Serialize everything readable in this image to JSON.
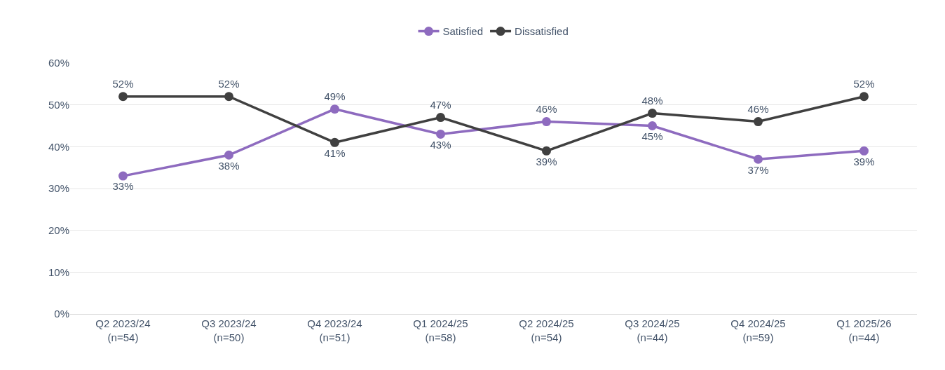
{
  "chart_data": {
    "type": "line",
    "categories": [
      "Q2 2023/24\n(n=54)",
      "Q3 2023/24\n(n=50)",
      "Q4 2023/24\n(n=51)",
      "Q1 2024/25\n(n=58)",
      "Q2 2024/25\n(n=54)",
      "Q3 2024/25\n(n=44)",
      "Q4 2024/25\n(n=59)",
      "Q1 2025/26\n(n=44)"
    ],
    "series": [
      {
        "name": "Satisfied",
        "color": "#8e6bbf",
        "values": [
          33,
          38,
          49,
          43,
          46,
          45,
          37,
          39
        ],
        "value_labels": [
          "33%",
          "38%",
          "49%",
          "43%",
          "46%",
          "45%",
          "37%",
          "39%"
        ]
      },
      {
        "name": "Dissatisfied",
        "color": "#404040",
        "values": [
          52,
          52,
          41,
          47,
          39,
          48,
          46,
          52
        ],
        "value_labels": [
          "52%",
          "52%",
          "41%",
          "47%",
          "39%",
          "48%",
          "46%",
          "52%"
        ]
      }
    ],
    "ylim": [
      0,
      60
    ],
    "yticks": [
      {
        "value": 0,
        "label": "0%"
      },
      {
        "value": 10,
        "label": "10%"
      },
      {
        "value": 20,
        "label": "20%"
      },
      {
        "value": 30,
        "label": "30%"
      },
      {
        "value": 40,
        "label": "40%"
      },
      {
        "value": 50,
        "label": "50%"
      },
      {
        "value": 60,
        "label": "60%"
      }
    ],
    "grid": "y",
    "legend": "top",
    "marker": "circle",
    "line_style": "solid"
  }
}
